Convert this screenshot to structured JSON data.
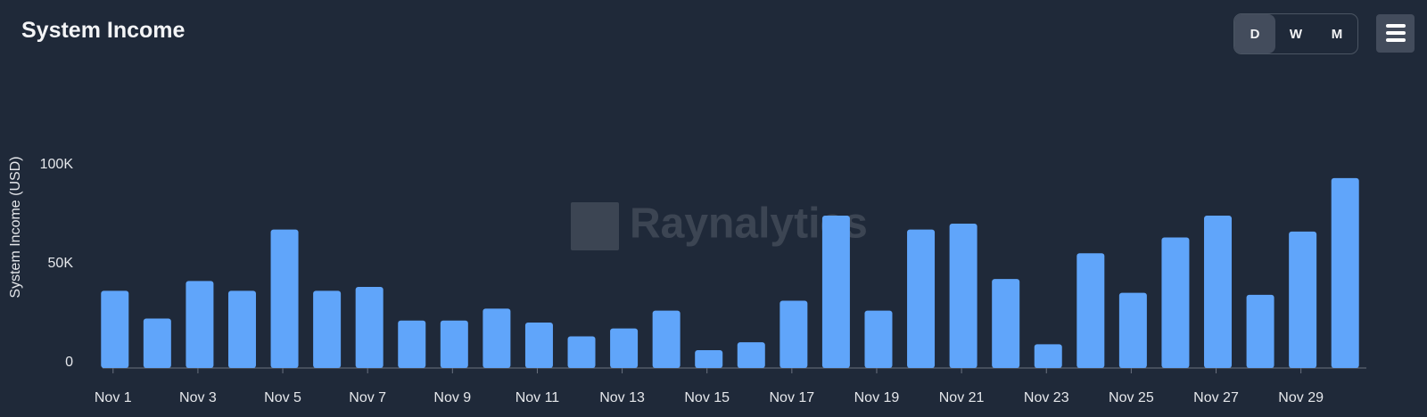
{
  "title": "System Income",
  "toolbar": {
    "buttons": [
      "D",
      "W",
      "M"
    ]
  },
  "watermark": "Raynalytics",
  "chart_data": {
    "type": "bar",
    "y_label": "System Income (USD)",
    "categories": [
      "Nov 1",
      null,
      "Nov 3",
      null,
      "Nov 5",
      null,
      "Nov 7",
      null,
      "Nov 9",
      null,
      "Nov 11",
      null,
      "Nov 13",
      null,
      "Nov 15",
      null,
      "Nov 17",
      null,
      "Nov 19",
      null,
      "Nov 21",
      null,
      "Nov 23",
      null,
      "Nov 25",
      null,
      "Nov 27",
      null,
      "Nov 29",
      null
    ],
    "values": [
      39000,
      25000,
      44000,
      39000,
      70000,
      39000,
      41000,
      24000,
      24000,
      30000,
      23000,
      16000,
      20000,
      29000,
      9000,
      13000,
      34000,
      77000,
      29000,
      70000,
      73000,
      45000,
      12000,
      58000,
      38000,
      66000,
      77000,
      37000,
      69000,
      96000
    ],
    "color": "#60a5fa",
    "ylim": [
      0,
      100000
    ],
    "yticks": [
      0,
      {
        "value": 50000,
        "label": "50K"
      },
      {
        "value": 100000,
        "label": "100K"
      }
    ],
    "grid": false
  }
}
